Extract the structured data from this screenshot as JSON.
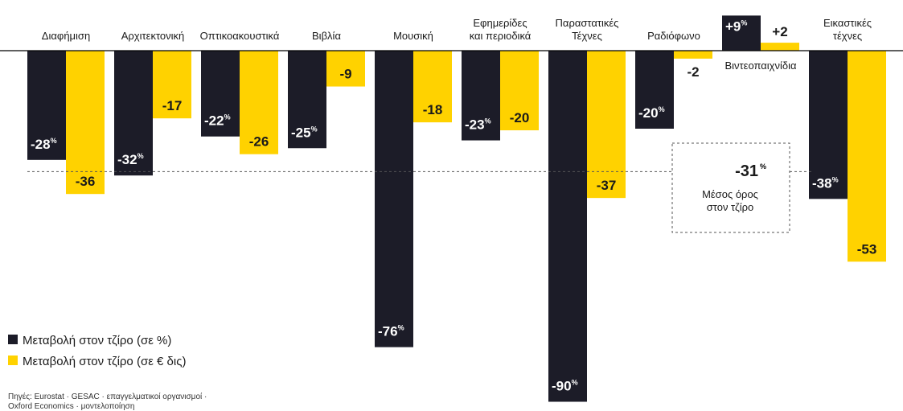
{
  "chart_data": {
    "type": "bar",
    "categories": [
      [
        "Διαφήμιση"
      ],
      [
        "Αρχιτεκτονική"
      ],
      [
        "Οπτικοακουστικά"
      ],
      [
        "Βιβλία"
      ],
      [
        "Μουσική"
      ],
      [
        "Εφημερίδες",
        "και περιοδικά"
      ],
      [
        "Παραστατικές",
        "Τέχνες"
      ],
      [
        "Ραδιόφωνο"
      ],
      [
        "Βιντεοπαιχνίδια"
      ],
      [
        "Εικαστικές",
        "τέχνες"
      ]
    ],
    "series": [
      {
        "name": "Μεταβολή στον τζίρο (σε %)",
        "color": "#1c1c28",
        "values": [
          -28,
          -32,
          -22,
          -25,
          -76,
          -23,
          -90,
          -20,
          9,
          -38
        ],
        "labels": [
          "-28",
          "-32",
          "-22",
          "-25",
          "-76",
          "-23",
          "-90",
          "-20",
          "+9",
          "-38"
        ],
        "unit": "%"
      },
      {
        "name": "Μεταβολή στον τζίρο (σε € δις)",
        "color": "#ffd200",
        "values": [
          -36,
          -17,
          -26,
          -9,
          -18,
          -20,
          -37,
          -2,
          2,
          -53
        ],
        "labels": [
          "-36",
          "-17",
          "-26",
          "-9",
          "-18",
          "-20",
          "-37",
          "-2",
          "+2",
          "-53"
        ]
      }
    ],
    "average": {
      "value": -31,
      "label": "-31",
      "unit": "%",
      "text": [
        "Μέσος όρος",
        "στον τζίρο"
      ]
    },
    "source": [
      "Πηγές: Eurostat · GESAC · επαγγελματικοί οργανισμοί ·",
      "Oxford Economics · μοντελοποίηση"
    ],
    "legend_position": "bottom-left"
  }
}
